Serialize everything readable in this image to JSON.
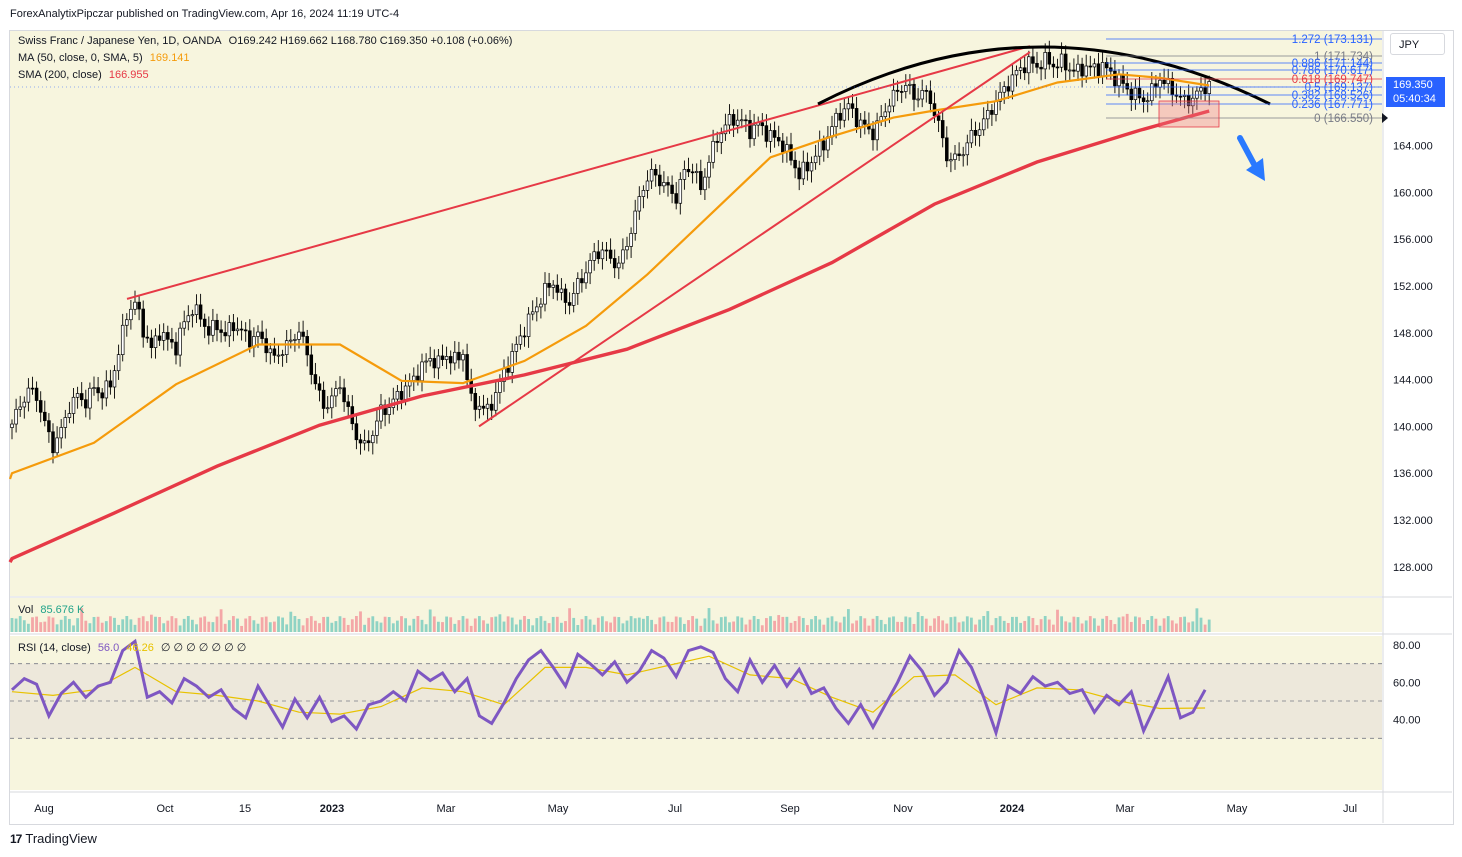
{
  "header": {
    "published": "ForexAnalytixPipczar published on TradingView.com, Apr 16, 2024 11:19 UTC-4"
  },
  "legend": {
    "symbol": "Swiss Franc / Japanese Yen, 1D, OANDA",
    "ohlc": "O169.242  H169.662  L168.780  C169.350  +0.108 (+0.06%)",
    "ma_label": "MA (50, close, 0, SMA, 5)",
    "ma_value": "169.141",
    "sma_label": "SMA (200, close)",
    "sma_value": "166.955",
    "vol_label": "Vol",
    "vol_value": "85.676 K",
    "rsi_label": "RSI (14, close)",
    "rsi_value": "56.0",
    "rsi_ma_value": "46.26",
    "rsi_extras": "∅ ∅ ∅ ∅ ∅ ∅ ∅"
  },
  "currency_button": "JPY",
  "price_tag": {
    "price": "169.350",
    "countdown": "05:40:34"
  },
  "branding": "TradingView",
  "colors": {
    "background": "#f7f5de",
    "ma50": "#f59b0b",
    "sma200": "#e63946",
    "trendline": "#e63946",
    "arc": "#000000",
    "rsi": "#7e57c2",
    "rsi_ma": "#e8c200",
    "arrow": "#2979ff"
  },
  "chart_data": {
    "type": "candlestick",
    "title": "Swiss Franc / Japanese Yen, 1D, OANDA",
    "y_axis_ticks": [
      "164.000",
      "160.000",
      "156.000",
      "152.000",
      "148.000",
      "144.000",
      "140.000",
      "136.000",
      "132.000",
      "128.000"
    ],
    "ylim": [
      125.5,
      173.8
    ],
    "x_axis_ticks": [
      "Aug",
      "Oct",
      "15",
      "2023",
      "Mar",
      "May",
      "Jul",
      "Sep",
      "Nov",
      "2024",
      "Mar",
      "May",
      "Jul"
    ],
    "fib_levels": [
      {
        "ratio": "1.272",
        "value": 173.131,
        "label": "1.272 (173.131)"
      },
      {
        "ratio": "1",
        "value": 171.734,
        "label": "1 (171.734)"
      },
      {
        "ratio": "0.886",
        "value": 171.144,
        "label": "0.886 (171.144)"
      },
      {
        "ratio": "0.786",
        "value": 170.617,
        "label": "0.786 (170.617)"
      },
      {
        "ratio": "0.618",
        "value": 169.747,
        "label": "0.618 (169.747)"
      },
      {
        "ratio": "0.5",
        "value": 169.137,
        "label": "0.5 (169.137)"
      },
      {
        "ratio": "0.382",
        "value": 168.526,
        "label": "0.382 (168.526)"
      },
      {
        "ratio": "0.236",
        "value": 167.771,
        "label": "0.236 (167.771)"
      },
      {
        "ratio": "0",
        "value": 166.55,
        "label": "0 (166.550)"
      }
    ],
    "price_path": [
      [
        0,
        140.2
      ],
      [
        2,
        141.8
      ],
      [
        4,
        143.1
      ],
      [
        6,
        142.6
      ],
      [
        8,
        140.2
      ],
      [
        10,
        138.3
      ],
      [
        12,
        139.6
      ],
      [
        14,
        141.7
      ],
      [
        16,
        142.6
      ],
      [
        18,
        142.1
      ],
      [
        20,
        143.3
      ],
      [
        22,
        142.8
      ],
      [
        24,
        143.6
      ],
      [
        26,
        146.3
      ],
      [
        28,
        149.6
      ],
      [
        30,
        150.6
      ],
      [
        32,
        148.3
      ],
      [
        34,
        146.6
      ],
      [
        36,
        148.1
      ],
      [
        38,
        147.3
      ],
      [
        40,
        146.8
      ],
      [
        42,
        148.9
      ],
      [
        44,
        150.1
      ],
      [
        46,
        149.3
      ],
      [
        48,
        148.1
      ],
      [
        50,
        148.6
      ],
      [
        52,
        147.8
      ],
      [
        54,
        148.7
      ],
      [
        56,
        148.1
      ],
      [
        58,
        147.4
      ],
      [
        60,
        147.8
      ],
      [
        62,
        146.9
      ],
      [
        64,
        145.8
      ],
      [
        66,
        146.6
      ],
      [
        68,
        147.2
      ],
      [
        70,
        148.3
      ],
      [
        72,
        146.1
      ],
      [
        74,
        143.6
      ],
      [
        76,
        141.7
      ],
      [
        78,
        142.3
      ],
      [
        80,
        143.6
      ],
      [
        82,
        141.2
      ],
      [
        84,
        139.2
      ],
      [
        86,
        138.2
      ],
      [
        88,
        139.5
      ],
      [
        90,
        141.3
      ],
      [
        92,
        141.7
      ],
      [
        94,
        142.6
      ],
      [
        96,
        143.3
      ],
      [
        98,
        144.1
      ],
      [
        100,
        145.1
      ],
      [
        102,
        145.8
      ],
      [
        104,
        145.4
      ],
      [
        106,
        146.1
      ],
      [
        108,
        145.6
      ],
      [
        110,
        146.3
      ],
      [
        112,
        142.1
      ],
      [
        114,
        141.8
      ],
      [
        116,
        141.3
      ],
      [
        118,
        142.8
      ],
      [
        120,
        144.6
      ],
      [
        122,
        146.1
      ],
      [
        124,
        147.6
      ],
      [
        126,
        149.1
      ],
      [
        128,
        150.3
      ],
      [
        130,
        151.6
      ],
      [
        132,
        152.3
      ],
      [
        134,
        151.1
      ],
      [
        136,
        150.6
      ],
      [
        138,
        152.1
      ],
      [
        140,
        153.3
      ],
      [
        142,
        154.6
      ],
      [
        144,
        155.1
      ],
      [
        146,
        154.3
      ],
      [
        148,
        153.8
      ],
      [
        150,
        155.6
      ],
      [
        152,
        158.1
      ],
      [
        154,
        160.6
      ],
      [
        156,
        161.6
      ],
      [
        158,
        161.1
      ],
      [
        160,
        160.3
      ],
      [
        162,
        159.6
      ],
      [
        164,
        161.8
      ],
      [
        166,
        162.1
      ],
      [
        168,
        160.3
      ],
      [
        170,
        162.8
      ],
      [
        172,
        164.6
      ],
      [
        174,
        165.8
      ],
      [
        176,
        166.3
      ],
      [
        178,
        166.1
      ],
      [
        180,
        165.3
      ],
      [
        182,
        165.8
      ],
      [
        184,
        165.1
      ],
      [
        186,
        164.6
      ],
      [
        188,
        164.1
      ],
      [
        190,
        162.8
      ],
      [
        192,
        161.6
      ],
      [
        194,
        162.1
      ],
      [
        196,
        163.3
      ],
      [
        198,
        164.1
      ],
      [
        200,
        165.6
      ],
      [
        202,
        166.8
      ],
      [
        204,
        167.4
      ],
      [
        206,
        166.3
      ],
      [
        208,
        165.6
      ],
      [
        210,
        165.1
      ],
      [
        212,
        166.3
      ],
      [
        214,
        167.8
      ],
      [
        216,
        168.6
      ],
      [
        218,
        169.3
      ],
      [
        220,
        168.1
      ],
      [
        222,
        168.6
      ],
      [
        224,
        167.9
      ],
      [
        226,
        165.8
      ],
      [
        228,
        163.1
      ],
      [
        230,
        162.8
      ],
      [
        232,
        163.6
      ],
      [
        234,
        164.8
      ],
      [
        236,
        165.6
      ],
      [
        238,
        166.6
      ],
      [
        240,
        167.8
      ],
      [
        242,
        168.8
      ],
      [
        244,
        169.8
      ],
      [
        246,
        170.6
      ],
      [
        248,
        171.1
      ],
      [
        250,
        170.8
      ],
      [
        252,
        171.3
      ],
      [
        254,
        170.9
      ],
      [
        256,
        171.1
      ],
      [
        258,
        170.6
      ],
      [
        260,
        170.3
      ],
      [
        262,
        170.8
      ],
      [
        264,
        170.5
      ],
      [
        266,
        170.9
      ],
      [
        268,
        170.1
      ],
      [
        270,
        169.6
      ],
      [
        272,
        168.8
      ],
      [
        274,
        168.3
      ],
      [
        276,
        167.9
      ],
      [
        278,
        168.6
      ],
      [
        280,
        169.8
      ],
      [
        282,
        169.1
      ],
      [
        284,
        168.4
      ],
      [
        286,
        167.8
      ],
      [
        288,
        168.1
      ],
      [
        290,
        168.7
      ],
      [
        292,
        169.35
      ]
    ],
    "ma50_path": [
      [
        0,
        136.0
      ],
      [
        20,
        138.6
      ],
      [
        40,
        143.6
      ],
      [
        60,
        147.0
      ],
      [
        80,
        147.0
      ],
      [
        95,
        143.9
      ],
      [
        110,
        143.7
      ],
      [
        125,
        145.6
      ],
      [
        140,
        148.6
      ],
      [
        155,
        153.0
      ],
      [
        170,
        158.0
      ],
      [
        185,
        163.0
      ],
      [
        200,
        164.8
      ],
      [
        215,
        166.4
      ],
      [
        225,
        167.0
      ],
      [
        240,
        167.8
      ],
      [
        255,
        169.4
      ],
      [
        270,
        170.1
      ],
      [
        280,
        169.8
      ],
      [
        292,
        169.14
      ]
    ],
    "sma200_path": [
      [
        0,
        128.7
      ],
      [
        25,
        132.6
      ],
      [
        50,
        136.6
      ],
      [
        75,
        140.1
      ],
      [
        100,
        142.6
      ],
      [
        125,
        144.4
      ],
      [
        150,
        146.6
      ],
      [
        175,
        150.0
      ],
      [
        200,
        154.0
      ],
      [
        225,
        159.0
      ],
      [
        250,
        162.6
      ],
      [
        275,
        165.3
      ],
      [
        292,
        166.96
      ]
    ],
    "rsi_levels": [
      70,
      50,
      30
    ],
    "rsi_ticks": [
      "80.00",
      "60.00",
      "40.00"
    ],
    "rsi_path": [
      [
        0,
        56
      ],
      [
        3,
        62
      ],
      [
        6,
        59
      ],
      [
        9,
        42
      ],
      [
        12,
        54
      ],
      [
        15,
        60
      ],
      [
        18,
        52
      ],
      [
        21,
        58
      ],
      [
        24,
        60
      ],
      [
        27,
        77
      ],
      [
        30,
        82
      ],
      [
        33,
        52
      ],
      [
        36,
        55
      ],
      [
        39,
        49
      ],
      [
        42,
        62
      ],
      [
        45,
        58
      ],
      [
        48,
        52
      ],
      [
        51,
        56
      ],
      [
        54,
        46
      ],
      [
        57,
        41
      ],
      [
        60,
        58
      ],
      [
        63,
        47
      ],
      [
        66,
        36
      ],
      [
        69,
        51
      ],
      [
        72,
        41
      ],
      [
        75,
        52
      ],
      [
        78,
        39
      ],
      [
        81,
        42
      ],
      [
        84,
        35
      ],
      [
        87,
        48
      ],
      [
        90,
        50
      ],
      [
        93,
        55
      ],
      [
        96,
        50
      ],
      [
        99,
        66
      ],
      [
        102,
        61
      ],
      [
        105,
        65
      ],
      [
        108,
        55
      ],
      [
        111,
        62
      ],
      [
        114,
        42
      ],
      [
        117,
        38
      ],
      [
        120,
        49
      ],
      [
        123,
        62
      ],
      [
        126,
        72
      ],
      [
        129,
        77
      ],
      [
        132,
        68
      ],
      [
        135,
        58
      ],
      [
        138,
        75
      ],
      [
        141,
        70
      ],
      [
        144,
        64
      ],
      [
        147,
        71
      ],
      [
        150,
        60
      ],
      [
        153,
        66
      ],
      [
        156,
        77
      ],
      [
        159,
        73
      ],
      [
        162,
        63
      ],
      [
        165,
        77
      ],
      [
        168,
        79
      ],
      [
        171,
        76
      ],
      [
        174,
        62
      ],
      [
        177,
        55
      ],
      [
        180,
        72
      ],
      [
        183,
        60
      ],
      [
        186,
        69
      ],
      [
        189,
        58
      ],
      [
        192,
        67
      ],
      [
        195,
        54
      ],
      [
        198,
        57
      ],
      [
        201,
        46
      ],
      [
        204,
        38
      ],
      [
        207,
        48
      ],
      [
        210,
        36
      ],
      [
        213,
        48
      ],
      [
        216,
        60
      ],
      [
        219,
        74
      ],
      [
        222,
        66
      ],
      [
        225,
        53
      ],
      [
        228,
        60
      ],
      [
        231,
        77
      ],
      [
        234,
        68
      ],
      [
        237,
        52
      ],
      [
        240,
        33
      ],
      [
        243,
        58
      ],
      [
        246,
        54
      ],
      [
        249,
        63
      ],
      [
        252,
        58
      ],
      [
        255,
        60
      ],
      [
        258,
        54
      ],
      [
        261,
        56
      ],
      [
        264,
        44
      ],
      [
        267,
        53
      ],
      [
        270,
        48
      ],
      [
        273,
        55
      ],
      [
        276,
        34
      ],
      [
        279,
        48
      ],
      [
        282,
        63
      ],
      [
        285,
        41
      ],
      [
        288,
        44
      ],
      [
        291,
        56
      ]
    ],
    "rsi_ma_path": [
      [
        0,
        55
      ],
      [
        10,
        53
      ],
      [
        20,
        56
      ],
      [
        30,
        68
      ],
      [
        40,
        55
      ],
      [
        50,
        53
      ],
      [
        60,
        50
      ],
      [
        70,
        44
      ],
      [
        80,
        43
      ],
      [
        90,
        47
      ],
      [
        100,
        57
      ],
      [
        110,
        55
      ],
      [
        120,
        48
      ],
      [
        130,
        68
      ],
      [
        140,
        68
      ],
      [
        150,
        64
      ],
      [
        160,
        69
      ],
      [
        170,
        74
      ],
      [
        180,
        64
      ],
      [
        190,
        62
      ],
      [
        200,
        52
      ],
      [
        210,
        44
      ],
      [
        220,
        63
      ],
      [
        230,
        64
      ],
      [
        240,
        48
      ],
      [
        250,
        57
      ],
      [
        260,
        56
      ],
      [
        270,
        50
      ],
      [
        280,
        46
      ],
      [
        291,
        46.26
      ]
    ]
  }
}
